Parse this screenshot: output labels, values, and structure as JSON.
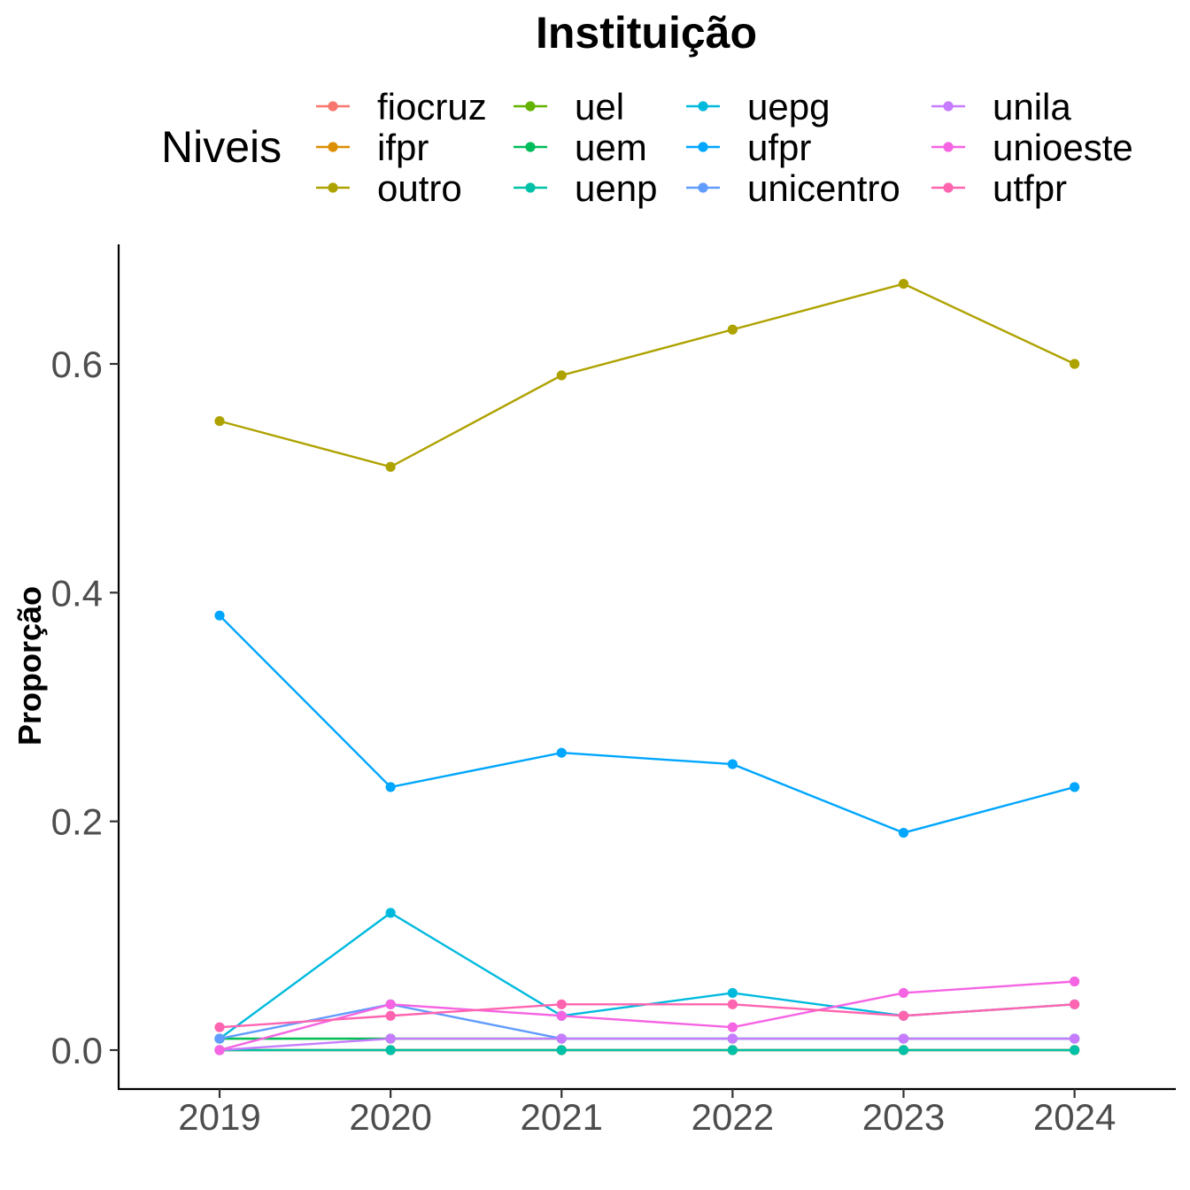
{
  "chart_data": {
    "type": "line",
    "title": "Instituição",
    "legend_title": "Niveis",
    "legend_placement": "top",
    "xlabel": "",
    "ylabel": "Proporção",
    "x": [
      2019,
      2020,
      2021,
      2022,
      2023,
      2024
    ],
    "xlim": [
      2018.4,
      2024.6
    ],
    "ylim": [
      -0.033,
      0.7
    ],
    "yticks": [
      0.0,
      0.2,
      0.4,
      0.6
    ],
    "ytick_labels": [
      "0.0",
      "0.2",
      "0.4",
      "0.6"
    ],
    "xtick_labels": [
      "2019",
      "2020",
      "2021",
      "2022",
      "2023",
      "2024"
    ],
    "grid": false,
    "series": [
      {
        "name": "fiocruz",
        "color": "#F8766D",
        "values": [
          0.0,
          0.0,
          0.0,
          0.0,
          0.0,
          0.0
        ]
      },
      {
        "name": "ifpr",
        "color": "#DB8E00",
        "values": [
          0.0,
          0.0,
          0.0,
          0.0,
          0.0,
          0.0
        ]
      },
      {
        "name": "outro",
        "color": "#AEA200",
        "values": [
          0.55,
          0.51,
          0.59,
          0.63,
          0.67,
          0.6
        ]
      },
      {
        "name": "uel",
        "color": "#64B200",
        "values": [
          0.01,
          0.01,
          0.01,
          0.01,
          0.01,
          0.01
        ]
      },
      {
        "name": "uem",
        "color": "#00BD5C",
        "values": [
          0.01,
          0.01,
          0.01,
          0.01,
          0.01,
          0.01
        ]
      },
      {
        "name": "uenp",
        "color": "#00C1A7",
        "values": [
          0.0,
          0.0,
          0.0,
          0.0,
          0.0,
          0.0
        ]
      },
      {
        "name": "uepg",
        "color": "#00BADE",
        "values": [
          0.01,
          0.12,
          0.03,
          0.05,
          0.03,
          0.04
        ]
      },
      {
        "name": "ufpr",
        "color": "#00A6FF",
        "values": [
          0.38,
          0.23,
          0.26,
          0.25,
          0.19,
          0.23
        ]
      },
      {
        "name": "unicentro",
        "color": "#619CFF",
        "values": [
          0.01,
          0.04,
          0.01,
          0.01,
          0.01,
          0.01
        ]
      },
      {
        "name": "unila",
        "color": "#C77CFF",
        "values": [
          0.0,
          0.01,
          0.01,
          0.01,
          0.01,
          0.01
        ]
      },
      {
        "name": "unioeste",
        "color": "#F564E3",
        "values": [
          0.0,
          0.04,
          0.03,
          0.02,
          0.05,
          0.06
        ]
      },
      {
        "name": "utfpr",
        "color": "#FF64B0",
        "values": [
          0.02,
          0.03,
          0.04,
          0.04,
          0.03,
          0.04
        ]
      }
    ]
  }
}
